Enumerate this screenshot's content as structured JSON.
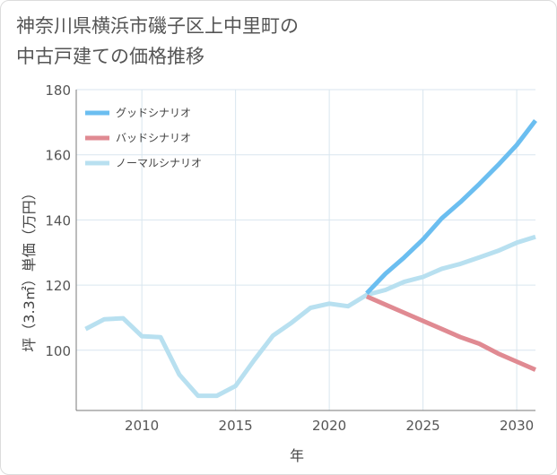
{
  "title_line1": "神奈川県横浜市磯子区上中里町の",
  "title_line2": "中古戸建ての価格推移",
  "chart_data": {
    "type": "line",
    "title": "神奈川県横浜市磯子区上中里町の中古戸建ての価格推移",
    "xlabel": "年",
    "ylabel": "坪（3.3㎡）単価（万円）",
    "xlim": [
      2006.5,
      2031
    ],
    "ylim": [
      81.5,
      180
    ],
    "xticks": [
      2010,
      2015,
      2020,
      2025,
      2030
    ],
    "yticks": [
      100,
      120,
      140,
      160,
      180
    ],
    "grid": true,
    "legend_position": "top-left",
    "series": [
      {
        "name": "グッドシナリオ",
        "color": "#6bbef0",
        "x": [
          2022,
          2023,
          2024,
          2025,
          2026,
          2027,
          2028,
          2029,
          2030,
          2031
        ],
        "y": [
          117.5,
          123.5,
          128.5,
          134.0,
          140.5,
          145.5,
          151.0,
          156.8,
          163.0,
          170.5
        ]
      },
      {
        "name": "バッドシナリオ",
        "color": "#e08a92",
        "x": [
          2022,
          2023,
          2024,
          2025,
          2026,
          2027,
          2028,
          2029,
          2030,
          2031
        ],
        "y": [
          116.5,
          114.0,
          111.5,
          109.0,
          106.5,
          104.0,
          102.0,
          99.0,
          96.5,
          94.0
        ]
      },
      {
        "name": "ノーマルシナリオ",
        "color": "#b8e0f0",
        "x": [
          2007,
          2008,
          2009,
          2010,
          2011,
          2012,
          2013,
          2014,
          2015,
          2016,
          2017,
          2018,
          2019,
          2020,
          2021,
          2022,
          2023,
          2024,
          2025,
          2026,
          2027,
          2028,
          2029,
          2030,
          2031
        ],
        "y": [
          106.5,
          109.5,
          109.8,
          104.3,
          104.0,
          92.5,
          86.0,
          86.0,
          89.0,
          97.0,
          104.5,
          108.5,
          113.0,
          114.3,
          113.5,
          117.0,
          118.5,
          121.0,
          122.5,
          125.0,
          126.5,
          128.5,
          130.5,
          133.0,
          134.8
        ]
      }
    ]
  }
}
